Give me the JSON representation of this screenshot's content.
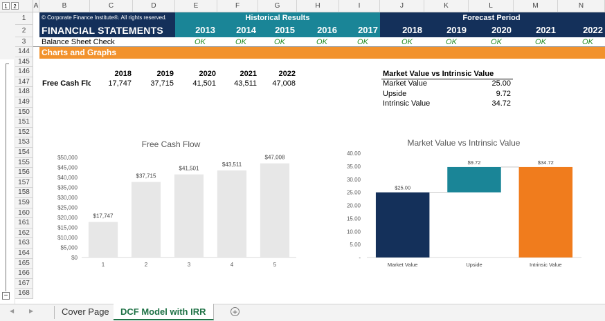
{
  "outline_levels": [
    "1",
    "2"
  ],
  "collapse_button": "−",
  "columns": [
    "A",
    "B",
    "C",
    "D",
    "E",
    "F",
    "G",
    "H",
    "I",
    "J",
    "K",
    "L",
    "M",
    "N"
  ],
  "rows": [
    "1",
    "2",
    "3",
    "144",
    "145",
    "146",
    "147",
    "148",
    "149",
    "150",
    "151",
    "152",
    "153",
    "154",
    "155",
    "156",
    "157",
    "158",
    "159",
    "160",
    "161",
    "162",
    "163",
    "164",
    "165",
    "166",
    "167",
    "168"
  ],
  "header": {
    "copyright": "© Corporate Finance Institute®. All rights reserved.",
    "title": "FINANCIAL STATEMENTS",
    "historical_label": "Historical Results",
    "forecast_label": "Forecast Period",
    "historical_years": [
      "2013",
      "2014",
      "2015",
      "2016",
      "2017"
    ],
    "forecast_years": [
      "2018",
      "2019",
      "2020",
      "2021",
      "2022"
    ]
  },
  "balance_check": {
    "label": "Balance Sheet Check",
    "values": [
      "OK",
      "OK",
      "OK",
      "OK",
      "OK",
      "OK",
      "OK",
      "OK",
      "OK",
      "OK"
    ]
  },
  "section_title": "Charts and Graphs",
  "fcf_table": {
    "years": [
      "2018",
      "2019",
      "2020",
      "2021",
      "2022"
    ],
    "label": "Free Cash Flow",
    "values": [
      "17,747",
      "37,715",
      "41,501",
      "43,511",
      "47,008"
    ]
  },
  "mv_table": {
    "title": "Market Value vs Intrinsic Value",
    "rows": [
      {
        "label": "Market Value",
        "value": "25.00"
      },
      {
        "label": "Upside",
        "value": "9.72"
      },
      {
        "label": "Intrinsic Value",
        "value": "34.72"
      }
    ]
  },
  "colors": {
    "navy": "#14305a",
    "teal": "#1a8597",
    "orange": "#f2922c",
    "intrinsic_orange": "#f07c1d",
    "bar_gray": "#e7e7e7",
    "ok_green": "#1f8a1f"
  },
  "chart_data": [
    {
      "type": "bar",
      "title": "Free Cash Flow",
      "categories": [
        "1",
        "2",
        "3",
        "4",
        "5"
      ],
      "values": [
        17747,
        37715,
        41501,
        43511,
        47008
      ],
      "data_labels": [
        "$17,747",
        "$37,715",
        "$41,501",
        "$43,511",
        "$47,008"
      ],
      "ylim": [
        0,
        50000
      ],
      "yticks": [
        0,
        5000,
        10000,
        15000,
        20000,
        25000,
        30000,
        35000,
        40000,
        45000,
        50000
      ],
      "ytick_labels": [
        "$0",
        "$5,000",
        "$10,000",
        "$15,000",
        "$20,000",
        "$25,000",
        "$30,000",
        "$35,000",
        "$40,000",
        "$45,000",
        "$50,000"
      ],
      "grid": false,
      "color": "#e7e7e7"
    },
    {
      "type": "bar",
      "subtype": "waterfall",
      "title": "Market Value vs Intrinsic Value",
      "categories": [
        "Market Value",
        "Upside",
        "Intrinsic Value"
      ],
      "values": [
        25.0,
        9.72,
        34.72
      ],
      "bases": [
        0,
        25.0,
        0
      ],
      "data_labels": [
        "$25.00",
        "$9.72",
        "$34.72"
      ],
      "bar_colors": [
        "#14305a",
        "#1a8597",
        "#f07c1d"
      ],
      "ylim": [
        0,
        40
      ],
      "yticks": [
        0,
        5,
        10,
        15,
        20,
        25,
        30,
        35,
        40
      ],
      "ytick_labels": [
        "-",
        "5.00",
        "10.00",
        "15.00",
        "20.00",
        "25.00",
        "30.00",
        "35.00",
        "40.00"
      ],
      "grid": false
    }
  ],
  "sheet_tabs": [
    {
      "label": "Cover Page",
      "active": false
    },
    {
      "label": "DCF Model with IRR",
      "active": true
    }
  ],
  "nav": {
    "prev": "◀",
    "next": "▶",
    "add_sheet": "+"
  }
}
